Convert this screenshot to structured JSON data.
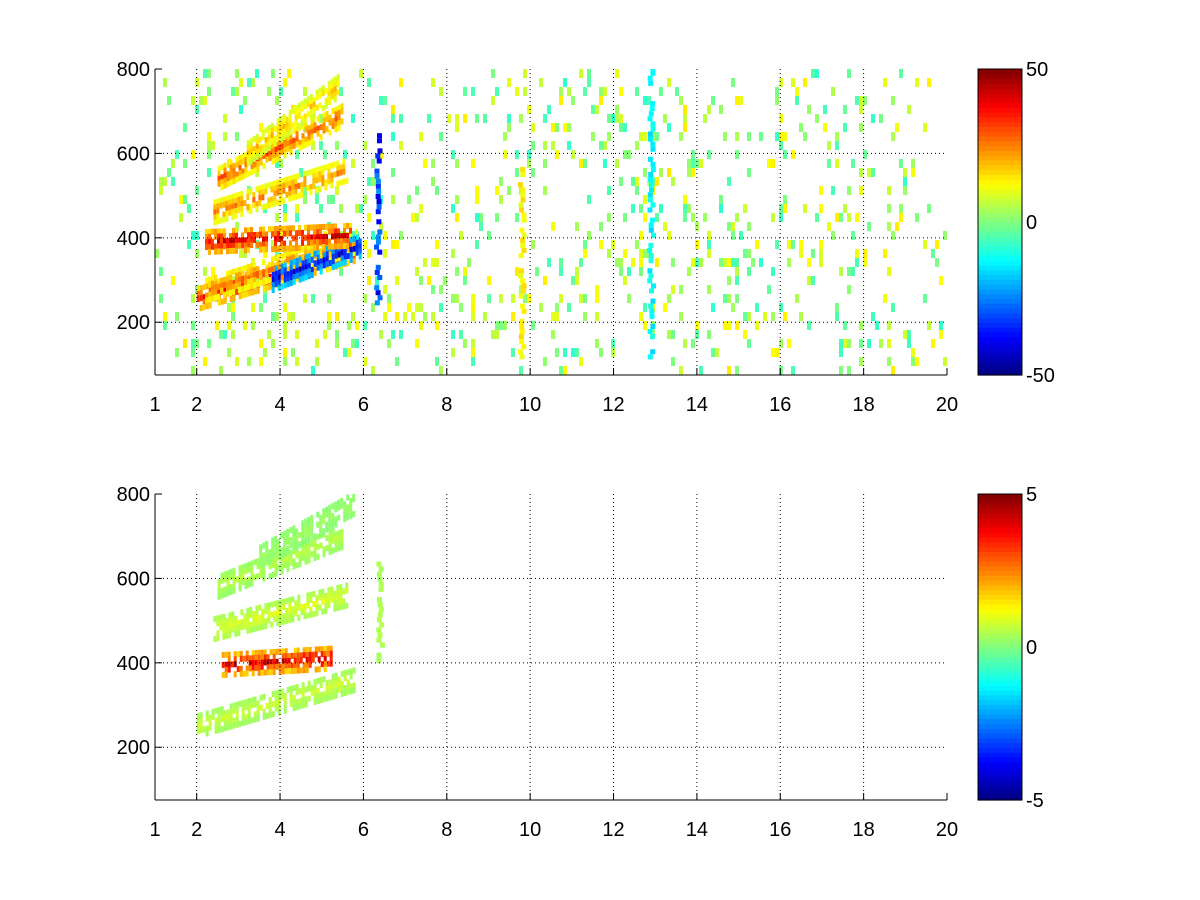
{
  "chart_data": [
    {
      "type": "heatmap",
      "title": "",
      "xlabel": "",
      "ylabel": "",
      "xlim": [
        1,
        20
      ],
      "ylim": [
        75,
        800
      ],
      "xticks": [
        1,
        2,
        4,
        6,
        8,
        10,
        12,
        14,
        16,
        18,
        20
      ],
      "yticks": [
        200,
        400,
        600,
        800
      ],
      "grid": true,
      "colormap": "jet",
      "clim": [
        -50,
        50
      ],
      "colorbar_ticks": [
        -50,
        0,
        50
      ],
      "features": [
        {
          "kind": "band",
          "x": [
            2.0,
            5.8
          ],
          "y": [
            255,
            370
          ],
          "value": 38
        },
        {
          "kind": "band",
          "x": [
            2.2,
            5.8
          ],
          "y": [
            275,
            390
          ],
          "value": 28
        },
        {
          "kind": "band",
          "x": [
            3.8,
            5.9
          ],
          "y": [
            300,
            380
          ],
          "value": -42
        },
        {
          "kind": "band",
          "x": [
            2.2,
            5.7
          ],
          "y": [
            390,
            405
          ],
          "value": 42
        },
        {
          "kind": "band",
          "x": [
            2.4,
            5.6
          ],
          "y": [
            460,
            560
          ],
          "value": 26
        },
        {
          "kind": "band",
          "x": [
            2.5,
            5.5
          ],
          "y": [
            540,
            690
          ],
          "value": 30
        },
        {
          "kind": "band",
          "x": [
            3.2,
            5.4
          ],
          "y": [
            600,
            760
          ],
          "value": 20
        },
        {
          "kind": "column",
          "x": 6.35,
          "y": [
            240,
            640
          ],
          "value": -38
        },
        {
          "kind": "column",
          "x": 9.8,
          "y": [
            100,
            560
          ],
          "value": 15
        },
        {
          "kind": "column",
          "x": 12.9,
          "y": [
            100,
            800
          ],
          "value": -15
        }
      ],
      "noise_density": 0.32
    },
    {
      "type": "heatmap",
      "title": "",
      "xlabel": "",
      "ylabel": "",
      "xlim": [
        1,
        20
      ],
      "ylim": [
        75,
        800
      ],
      "xticks": [
        1,
        2,
        4,
        6,
        8,
        10,
        12,
        14,
        16,
        18,
        20
      ],
      "yticks": [
        200,
        400,
        600,
        800
      ],
      "grid": true,
      "colormap": "jet",
      "clim": [
        -5,
        5
      ],
      "colorbar_ticks": [
        -5,
        0,
        5
      ],
      "features": [
        {
          "kind": "band",
          "x": [
            2.0,
            5.8
          ],
          "y": [
            250,
            360
          ],
          "value": 0.8
        },
        {
          "kind": "band",
          "x": [
            2.6,
            5.2
          ],
          "y": [
            395,
            410
          ],
          "value": 4.4
        },
        {
          "kind": "band",
          "x": [
            2.4,
            5.6
          ],
          "y": [
            480,
            560
          ],
          "value": 1.0
        },
        {
          "kind": "band",
          "x": [
            2.5,
            5.5
          ],
          "y": [
            580,
            700
          ],
          "value": 0.6
        },
        {
          "kind": "band",
          "x": [
            3.5,
            5.8
          ],
          "y": [
            650,
            780
          ],
          "value": 0.3
        },
        {
          "kind": "column",
          "x": 6.4,
          "y": [
            400,
            640
          ],
          "value": 0.5
        }
      ],
      "noise_density": 0.0
    }
  ]
}
